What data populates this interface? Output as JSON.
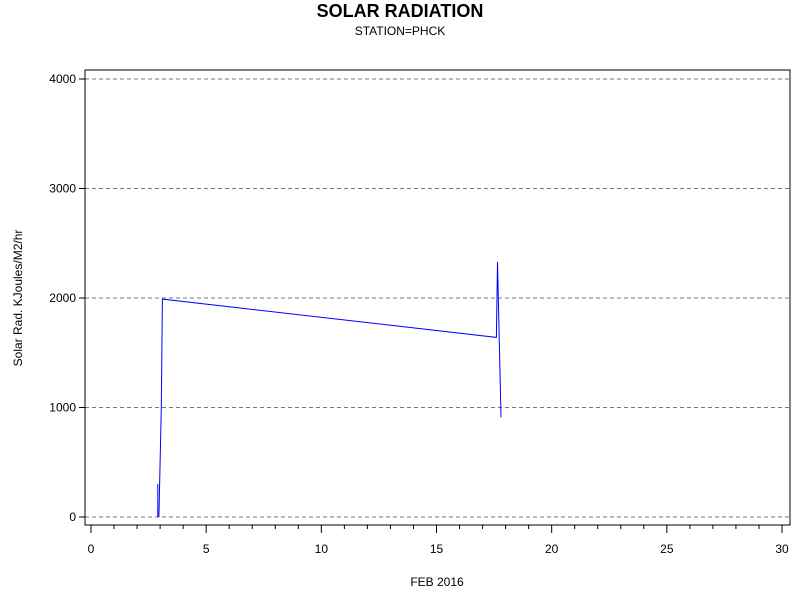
{
  "chart_data": {
    "type": "line",
    "title": "SOLAR RADIATION",
    "subtitle": "STATION=PHCK",
    "xlabel": "FEB 2016",
    "ylabel": "Solar Rad. KJoules/M2/hr",
    "xlim": [
      0,
      30
    ],
    "ylim": [
      0,
      4000
    ],
    "x_ticks": [
      0,
      5,
      10,
      15,
      20,
      25,
      30
    ],
    "x_minor_step": 1,
    "y_ticks": [
      0,
      1000,
      2000,
      3000,
      4000
    ],
    "grid": "horizontal-dashed",
    "series": [
      {
        "color": "#0000ff",
        "segments": [
          [
            [
              2.9,
              300
            ],
            [
              2.9,
              0
            ]
          ],
          [
            [
              2.95,
              0
            ],
            [
              3.05,
              1000
            ],
            [
              3.1,
              1990
            ],
            [
              17.6,
              1640
            ],
            [
              17.65,
              2330
            ],
            [
              17.8,
              910
            ]
          ]
        ]
      }
    ]
  }
}
